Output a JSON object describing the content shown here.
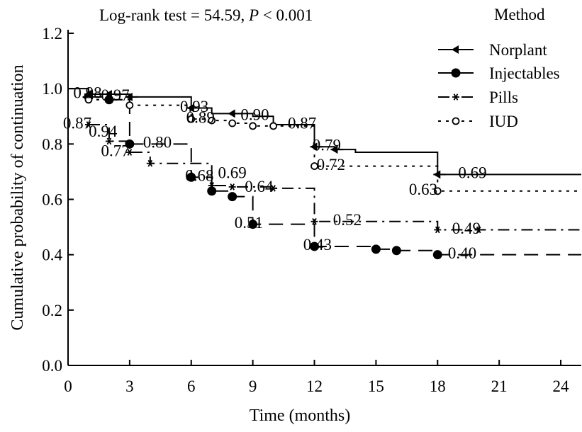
{
  "chart_data": {
    "type": "line",
    "subtype": "kaplan-meier step curves",
    "title": "",
    "annotation": {
      "prefix": "Log-rank test = 54.59, ",
      "p": "P",
      "suffix": " < 0.001"
    },
    "xlabel": "Time (months)",
    "ylabel": "Cumulative probability of continuation",
    "xlim": [
      0,
      25
    ],
    "ylim": [
      0,
      1.2
    ],
    "xticks": [
      0,
      3,
      6,
      9,
      12,
      15,
      18,
      21,
      24
    ],
    "xtick_labels": [
      "0",
      "3",
      "6",
      "9",
      "12",
      "15",
      "18",
      "21",
      "24"
    ],
    "yticks": [
      0,
      0.2,
      0.4,
      0.6,
      0.8,
      1.0,
      1.2
    ],
    "ytick_labels": [
      "0.0",
      "0.2",
      "0.4",
      "0.6",
      "0.8",
      "1.0",
      "1.2"
    ],
    "grid": false,
    "legend": {
      "title": "Method",
      "position": "top-right"
    },
    "series": [
      {
        "name": "Norplant",
        "marker": "triangle-left",
        "dash": "solid",
        "x": [
          0,
          1,
          2,
          3,
          6,
          7,
          8,
          9,
          10,
          12,
          13,
          14,
          18,
          25
        ],
        "y": [
          1.0,
          0.98,
          0.98,
          0.97,
          0.93,
          0.91,
          0.91,
          0.9,
          0.87,
          0.79,
          0.78,
          0.77,
          0.69,
          0.69
        ],
        "markers_x": [
          1,
          2,
          3,
          6,
          8,
          12,
          13,
          18
        ],
        "markers_y": [
          0.98,
          0.98,
          0.97,
          0.93,
          0.91,
          0.79,
          0.78,
          0.69
        ]
      },
      {
        "name": "Injectables",
        "marker": "filled-circle",
        "dash": "long-dash",
        "x": [
          1,
          2,
          3,
          6,
          7,
          8,
          9,
          12,
          15,
          16,
          18,
          25
        ],
        "y": [
          0.97,
          0.96,
          0.8,
          0.68,
          0.63,
          0.61,
          0.51,
          0.43,
          0.42,
          0.415,
          0.4,
          0.4
        ],
        "markers_x": [
          1,
          2,
          3,
          6,
          7,
          8,
          9,
          12,
          15,
          16,
          18
        ],
        "markers_y": [
          0.97,
          0.96,
          0.8,
          0.68,
          0.63,
          0.61,
          0.51,
          0.43,
          0.42,
          0.415,
          0.4
        ]
      },
      {
        "name": "Pills",
        "marker": "asterisk",
        "dash": "dash-dot",
        "x": [
          1,
          2,
          3,
          4,
          7,
          8,
          10,
          12,
          18,
          20,
          25
        ],
        "y": [
          0.87,
          0.81,
          0.77,
          0.73,
          0.65,
          0.645,
          0.64,
          0.52,
          0.49,
          0.49,
          0.49
        ],
        "markers_x": [
          1,
          2,
          3,
          4,
          7,
          8,
          10,
          12,
          18,
          20
        ],
        "markers_y": [
          0.87,
          0.81,
          0.77,
          0.73,
          0.65,
          0.645,
          0.64,
          0.52,
          0.49,
          0.49
        ]
      },
      {
        "name": "IUD",
        "marker": "open-circle",
        "dash": "dotted",
        "x": [
          1,
          3,
          6,
          7,
          8,
          9,
          10,
          12,
          18,
          25
        ],
        "y": [
          0.96,
          0.94,
          0.89,
          0.885,
          0.875,
          0.865,
          0.865,
          0.72,
          0.63,
          0.63
        ],
        "markers_x": [
          1,
          3,
          6,
          7,
          8,
          9,
          10,
          12,
          18
        ],
        "markers_y": [
          0.96,
          0.94,
          0.89,
          0.885,
          0.875,
          0.865,
          0.865,
          0.72,
          0.63
        ]
      }
    ],
    "data_labels": [
      {
        "text": "0.98",
        "x": 0.95,
        "y": 0.98
      },
      {
        "text": "0.97",
        "x": 2.3,
        "y": 0.97
      },
      {
        "text": "0.93",
        "x": 6.15,
        "y": 0.93
      },
      {
        "text": "0.90",
        "x": 9.1,
        "y": 0.9
      },
      {
        "text": "0.94",
        "x": 1.7,
        "y": 0.84
      },
      {
        "text": "0.87",
        "x": 0.45,
        "y": 0.87
      },
      {
        "text": "0.80",
        "x": 4.35,
        "y": 0.8
      },
      {
        "text": "0.89",
        "x": 6.45,
        "y": 0.89
      },
      {
        "text": "0.77",
        "x": 2.3,
        "y": 0.77
      },
      {
        "text": "0.69",
        "x": 8.0,
        "y": 0.69
      },
      {
        "text": "0.87",
        "x": 11.4,
        "y": 0.87
      },
      {
        "text": "0.72",
        "x": 12.8,
        "y": 0.72
      },
      {
        "text": "0.79",
        "x": 12.6,
        "y": 0.79
      },
      {
        "text": "0.69",
        "x": 19.7,
        "y": 0.69
      },
      {
        "text": "0.63",
        "x": 17.3,
        "y": 0.63
      },
      {
        "text": "0.68",
        "x": 6.4,
        "y": 0.68
      },
      {
        "text": "0.64",
        "x": 9.3,
        "y": 0.64
      },
      {
        "text": "0.52",
        "x": 13.6,
        "y": 0.52
      },
      {
        "text": "0.49",
        "x": 19.4,
        "y": 0.49
      },
      {
        "text": "0.51",
        "x": 8.8,
        "y": 0.51
      },
      {
        "text": "0.43",
        "x": 12.15,
        "y": 0.43
      },
      {
        "text": "0.40",
        "x": 19.2,
        "y": 0.4
      }
    ]
  }
}
